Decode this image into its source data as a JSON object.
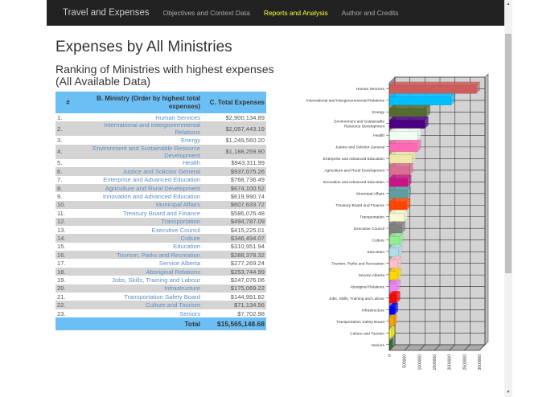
{
  "nav": {
    "brand": "Travel and Expenses",
    "items": [
      {
        "label": "Objectives and Context Data",
        "active": false
      },
      {
        "label": "Reports and Analysis",
        "active": true
      },
      {
        "label": "Author and Credits",
        "active": false
      }
    ]
  },
  "page": {
    "title": "Expenses by All Ministries",
    "subtitle": "Ranking of Ministries with highest expenses (All Available Data)"
  },
  "table": {
    "headers": [
      "#",
      "B. Ministry (Order by highest total expenses)",
      "C. Total Expenses"
    ],
    "rows": [
      [
        "1.",
        "Human Services",
        "$2,900,134.89"
      ],
      [
        "2.",
        "International and Intergovernmental Relations",
        "$2,057,443.19"
      ],
      [
        "3.",
        "Energy",
        "$1,249,560.20"
      ],
      [
        "4.",
        "Environment and Sustainable Resource Development",
        "$1,188,259.90"
      ],
      [
        "5.",
        "Health",
        "$943,311.99"
      ],
      [
        "6.",
        "Justice and Solicitor General",
        "$937,075.26"
      ],
      [
        "7.",
        "Enterprise and Advanced Education",
        "$768,736.49"
      ],
      [
        "8.",
        "Agriculture and Rural Development",
        "$674,100.52"
      ],
      [
        "9.",
        "Innovation and Advanced Education",
        "$619,990.74"
      ],
      [
        "10.",
        "Municipal Affairs",
        "$607,633.72"
      ],
      [
        "11.",
        "Treasury Board and Finance",
        "$586,076.48"
      ],
      [
        "12.",
        "Transportation",
        "$494,787.09"
      ],
      [
        "13.",
        "Executive Council",
        "$415,225.01"
      ],
      [
        "14.",
        "Culture",
        "$346,494.07"
      ],
      [
        "15.",
        "Education",
        "$310,951.94"
      ],
      [
        "16.",
        "Tourism, Parks and Recreation",
        "$288,378.32"
      ],
      [
        "17.",
        "Service Alberta",
        "$277,269.24"
      ],
      [
        "18.",
        "Aboriginal Relations",
        "$253,744.99"
      ],
      [
        "19.",
        "Jobs, Skills, Training and Labour",
        "$247,076.06"
      ],
      [
        "20.",
        "Infrastructure",
        "$175,069.22"
      ],
      [
        "21.",
        "Transportation Safety Board",
        "$144,991.82"
      ],
      [
        "22.",
        "Culture and Tourism",
        "$71,134.56"
      ],
      [
        "23.",
        "Seniors",
        "$7,702.98"
      ]
    ],
    "total_label": "Total",
    "total_value": "$15,565,148.68"
  },
  "chart_data": {
    "type": "bar",
    "orientation": "horizontal",
    "style": "3d",
    "categories": [
      "Human Services",
      "International and Intergovernmental Relations",
      "Energy",
      "Environment and Sustainable Resource Development",
      "Health",
      "Justice and Solicitor General",
      "Enterprise and Advanced Education",
      "Agriculture and Rural Development",
      "Innovation and Advanced Education",
      "Municipal Affairs",
      "Treasury Board and Finance",
      "Transportation",
      "Executive Council",
      "Culture",
      "Education",
      "Tourism, Parks and Recreation",
      "Service Alberta",
      "Aboriginal Relations",
      "Jobs, Skills, Training and Labour",
      "Infrastructure",
      "Transportation Safety Board",
      "Culture and Tourism",
      "Seniors"
    ],
    "values": [
      2900134.89,
      2057443.19,
      1249560.2,
      1188259.9,
      943311.99,
      937075.26,
      768736.49,
      674100.52,
      619990.74,
      607633.72,
      586076.48,
      494787.09,
      415225.01,
      346494.07,
      310951.94,
      288378.32,
      277269.24,
      253744.99,
      247076.06,
      175069.22,
      144991.82,
      71134.56,
      7702.98
    ],
    "colors": [
      "#cd5c5c",
      "#00bfff",
      "#556b2f",
      "#4b0082",
      "#f0fff0",
      "#ff69b4",
      "#eee8aa",
      "#db7093",
      "#c71585",
      "#5f9ea0",
      "#ff4500",
      "#fafad2",
      "#808080",
      "#90ee90",
      "#b0e0e6",
      "#ffc0cb",
      "#ffd700",
      "#ee82ee",
      "#ff0000",
      "#0000ff",
      "#ffa500",
      "#ffff00",
      "#006400"
    ],
    "xlim": [
      0,
      3000000
    ],
    "xticks": [
      "0",
      "500000",
      "1000000",
      "1500000",
      "2000000",
      "2500000",
      "3000000"
    ],
    "grid": true
  }
}
